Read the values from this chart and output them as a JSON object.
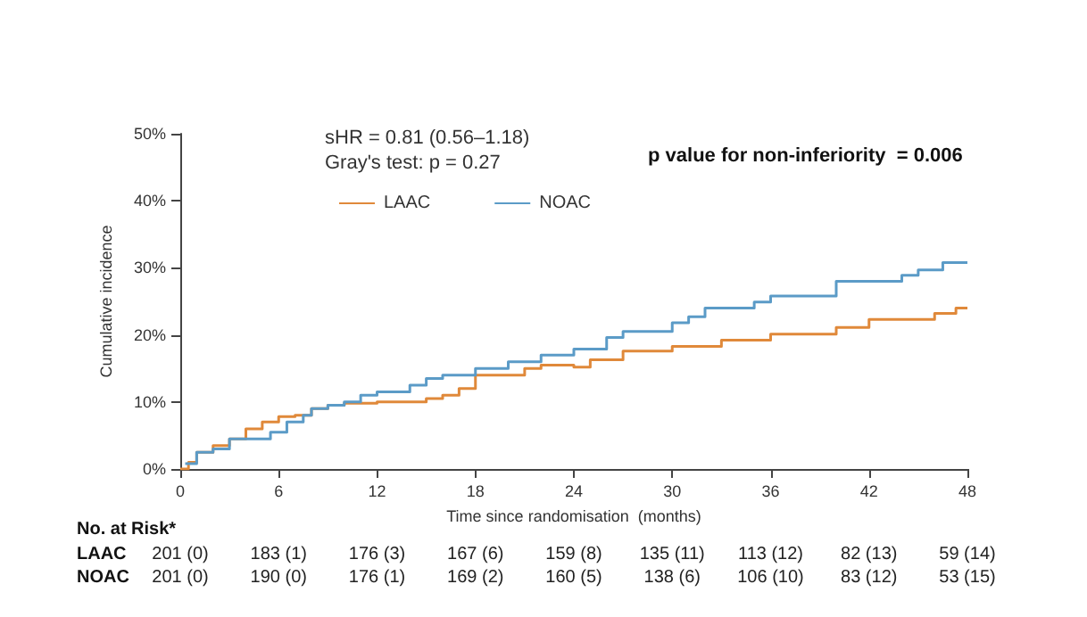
{
  "chart_data": {
    "type": "step",
    "xlabel": "Time since randomisation  (months)",
    "ylabel": "Cumulative incidence",
    "xlim": [
      0,
      48
    ],
    "xticks": [
      0,
      6,
      12,
      18,
      24,
      30,
      36,
      42,
      48
    ],
    "ylim": [
      0,
      50
    ],
    "yticks": [
      {
        "value": 0,
        "label": "0%"
      },
      {
        "value": 10,
        "label": "10%"
      },
      {
        "value": 20,
        "label": "20%"
      },
      {
        "value": 30,
        "label": "30%"
      },
      {
        "value": 40,
        "label": "40%"
      },
      {
        "value": 50,
        "label": "50%"
      }
    ],
    "grid": false,
    "legend": "top",
    "marker": "none",
    "line_style": "solid",
    "series": [
      {
        "name": "LAAC",
        "color": "#e0893a",
        "x": [
          0,
          0.5,
          1,
          2,
          3,
          4,
          5,
          6,
          7,
          8,
          9,
          10,
          12,
          15,
          16,
          17,
          18,
          20,
          21,
          22,
          24,
          25,
          27,
          30,
          33,
          36,
          40,
          42,
          46,
          47.3,
          48
        ],
        "values": [
          0,
          1,
          2.5,
          3.5,
          4.5,
          6,
          7,
          7.8,
          8,
          9,
          9.5,
          9.8,
          10,
          10.5,
          11,
          12,
          14,
          14,
          15,
          15.5,
          15.2,
          16.3,
          17.6,
          18.3,
          19.2,
          20.1,
          21.1,
          22.3,
          23.2,
          24,
          24
        ]
      },
      {
        "name": "NOAC",
        "color": "#5b9bc7",
        "x": [
          0.3,
          1,
          2,
          3,
          5,
          5.5,
          6.5,
          7.5,
          8,
          9,
          10,
          11,
          12,
          14,
          15,
          16,
          18,
          20,
          22,
          24,
          26,
          27,
          30,
          31,
          32,
          35,
          36,
          40,
          44,
          45,
          46.5,
          48
        ],
        "values": [
          0.8,
          2.5,
          3,
          4.5,
          4.5,
          5.5,
          7,
          8,
          9,
          9.5,
          10,
          11,
          11.5,
          12.5,
          13.5,
          14,
          15,
          16,
          17,
          17.9,
          19.6,
          20.5,
          21.8,
          22.7,
          24,
          24.9,
          25.8,
          28,
          28.9,
          29.7,
          30.8,
          30.8
        ]
      }
    ],
    "annotations": [
      "sHR = 0.81 (0.56–1.18)",
      "Gray's test: p = 0.27",
      "p value for non-inferiority  = 0.006",
      "No. at Risk*",
      "LAAC",
      "201 (0)",
      "183 (1)",
      "176 (3)",
      "167 (6)",
      "159 (8)",
      "135 (11)",
      "113 (12)",
      "82 (13)",
      "59 (14)",
      "NOAC",
      "201 (0)",
      "190 (0)",
      "176 (1)",
      "169 (2)",
      "160 (5)",
      "138 (6)",
      "106 (10)",
      "83 (12)",
      "53 (15)"
    ]
  }
}
